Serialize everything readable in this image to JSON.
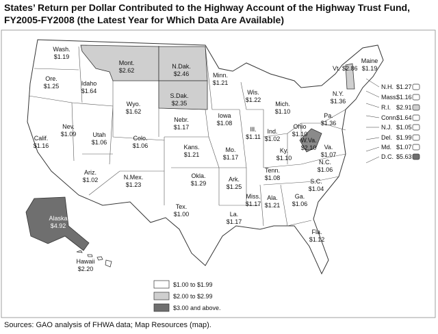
{
  "header": {
    "title": "States’ Return per Dollar Contributed to the Highway Account of the Highway Trust Fund, FY2005-FY2008 (the Latest Year for Which Data Are Available)"
  },
  "states": [
    {
      "name": "Wash.",
      "value": "$1.19",
      "shade": "#ffffff"
    },
    {
      "name": "Ore.",
      "value": "$1.25",
      "shade": "#ffffff"
    },
    {
      "name": "Calif.",
      "value": "$1.16",
      "shade": "#ffffff"
    },
    {
      "name": "Nev.",
      "value": "$1.09",
      "shade": "#ffffff"
    },
    {
      "name": "Idaho",
      "value": "$1.64",
      "shade": "#ffffff"
    },
    {
      "name": "Mont.",
      "value": "$2.62",
      "shade": "#cfcfcf"
    },
    {
      "name": "Wyo.",
      "value": "$1.62",
      "shade": "#ffffff"
    },
    {
      "name": "Utah",
      "value": "$1.06",
      "shade": "#ffffff"
    },
    {
      "name": "Colo.",
      "value": "$1.06",
      "shade": "#ffffff"
    },
    {
      "name": "Ariz.",
      "value": "$1.02",
      "shade": "#ffffff"
    },
    {
      "name": "N.Mex.",
      "value": "$1.23",
      "shade": "#ffffff"
    },
    {
      "name": "N.Dak.",
      "value": "$2.46",
      "shade": "#cfcfcf"
    },
    {
      "name": "S.Dak.",
      "value": "$2.35",
      "shade": "#cfcfcf"
    },
    {
      "name": "Nebr.",
      "value": "$1.17",
      "shade": "#ffffff"
    },
    {
      "name": "Kans.",
      "value": "$1.21",
      "shade": "#ffffff"
    },
    {
      "name": "Okla.",
      "value": "$1.29",
      "shade": "#ffffff"
    },
    {
      "name": "Tex.",
      "value": "$1.00",
      "shade": "#ffffff"
    },
    {
      "name": "Minn.",
      "value": "$1.21",
      "shade": "#ffffff"
    },
    {
      "name": "Iowa",
      "value": "$1.08",
      "shade": "#ffffff"
    },
    {
      "name": "Mo.",
      "value": "$1.17",
      "shade": "#ffffff"
    },
    {
      "name": "Ark.",
      "value": "$1.25",
      "shade": "#ffffff"
    },
    {
      "name": "La.",
      "value": "$1.17",
      "shade": "#ffffff"
    },
    {
      "name": "Wis.",
      "value": "$1.22",
      "shade": "#ffffff"
    },
    {
      "name": "Ill.",
      "value": "$1.11",
      "shade": "#ffffff"
    },
    {
      "name": "Miss.",
      "value": "$1.17",
      "shade": "#ffffff"
    },
    {
      "name": "Mich.",
      "value": "$1.10",
      "shade": "#ffffff"
    },
    {
      "name": "Ind.",
      "value": "$1.02",
      "shade": "#ffffff"
    },
    {
      "name": "Ky.",
      "value": "$1.10",
      "shade": "#ffffff"
    },
    {
      "name": "Tenn.",
      "value": "$1.08",
      "shade": "#ffffff"
    },
    {
      "name": "Ala.",
      "value": "$1.21",
      "shade": "#ffffff"
    },
    {
      "name": "Ohio",
      "value": "$1.10",
      "shade": "#ffffff"
    },
    {
      "name": "W.Va.",
      "value": "$2.10",
      "shade": "#cfcfcf"
    },
    {
      "name": "Ga.",
      "value": "$1.06",
      "shade": "#ffffff"
    },
    {
      "name": "Fla.",
      "value": "$1.12",
      "shade": "#ffffff"
    },
    {
      "name": "S.C.",
      "value": "$1.04",
      "shade": "#ffffff"
    },
    {
      "name": "N.C.",
      "value": "$1.06",
      "shade": "#ffffff"
    },
    {
      "name": "Va.",
      "value": "$1.07",
      "shade": "#ffffff"
    },
    {
      "name": "Pa.",
      "value": "$1.36",
      "shade": "#ffffff"
    },
    {
      "name": "N.Y.",
      "value": "$1.36",
      "shade": "#ffffff"
    },
    {
      "name": "Vt.",
      "value": "$2.86",
      "shade": "#cfcfcf"
    },
    {
      "name": "Maine",
      "value": "$1.19",
      "shade": "#ffffff"
    },
    {
      "name": "Alaska",
      "value": "$4.92",
      "shade": "#6f6f6f"
    },
    {
      "name": "Hawaii",
      "value": "$2.20",
      "shade": "#cfcfcf"
    },
    {
      "name": "N.H.",
      "value": "$1.27",
      "shade": "#ffffff"
    },
    {
      "name": "Mass.",
      "value": "$1.16",
      "shade": "#ffffff"
    },
    {
      "name": "R.I.",
      "value": "$2.91",
      "shade": "#cfcfcf"
    },
    {
      "name": "Conn.",
      "value": "$1.64",
      "shade": "#ffffff"
    },
    {
      "name": "N.J.",
      "value": "$1.05",
      "shade": "#ffffff"
    },
    {
      "name": "Del.",
      "value": "$1.99",
      "shade": "#ffffff"
    },
    {
      "name": "Md.",
      "value": "$1.07",
      "shade": "#ffffff"
    },
    {
      "name": "D.C.",
      "value": "$5.63",
      "shade": "#6f6f6f"
    }
  ],
  "legend": [
    {
      "label": "$1.00 to $1.99",
      "color": "#ffffff"
    },
    {
      "label": "$2.00 to $2.99",
      "color": "#cfcfcf"
    },
    {
      "label": "$3.00 and above.",
      "color": "#6f6f6f"
    }
  ],
  "footer": {
    "source": "Sources: GAO analysis of FHWA data; Map Resources (map)."
  }
}
